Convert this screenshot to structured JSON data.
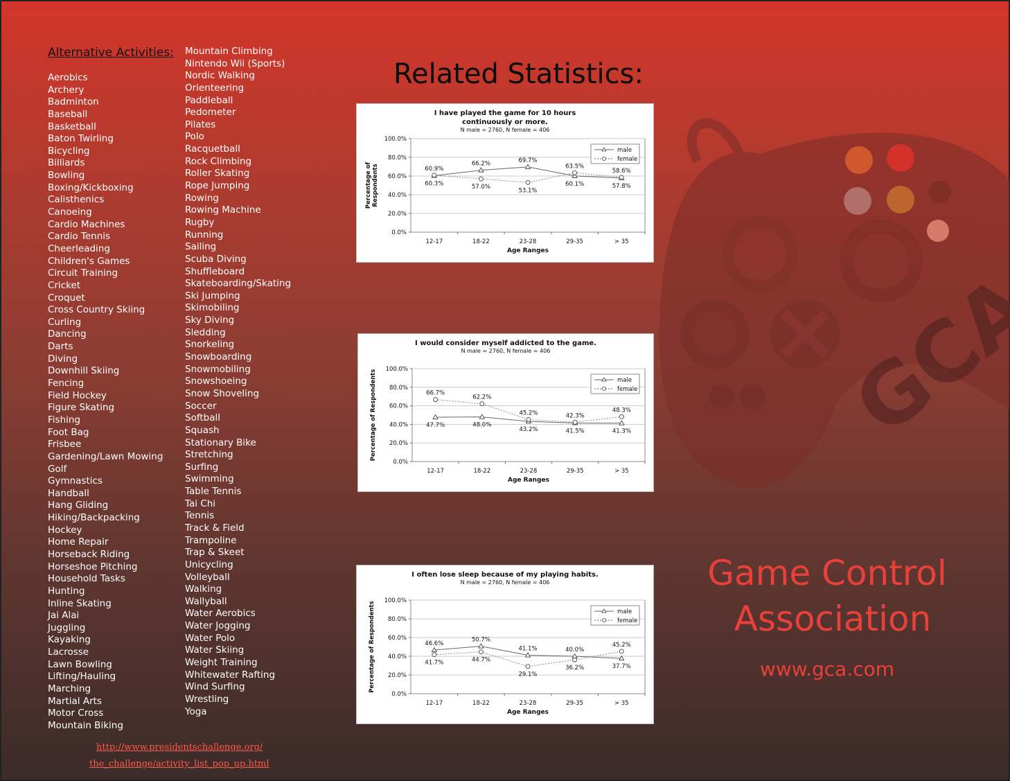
{
  "activities": {
    "title": "Alternative Activities:",
    "column1": [
      "Aerobics",
      "Archery",
      "Badminton",
      "Baseball",
      "Basketball",
      "Baton Twirling",
      "Bicycling",
      "Billiards",
      "Bowling",
      "Boxing/Kickboxing",
      "Calisthenics",
      "Canoeing",
      "Cardio Machines",
      "Cardio Tennis",
      "Cheerleading",
      "Children's Games",
      "Circuit Training",
      "Cricket",
      "Croquet",
      "Cross Country Skiing",
      "Curling",
      "Dancing",
      "Darts",
      "Diving",
      "Downhill Skiing",
      "Fencing",
      "Field Hockey",
      "Figure Skating",
      "Fishing",
      "Foot Bag",
      "Frisbee",
      "Gardening/Lawn Mowing",
      "Golf",
      "Gymnastics",
      "Handball",
      "Hang Gliding",
      "Hiking/Backpacking",
      "Hockey",
      "Home Repair",
      "Horseback Riding",
      "Horseshoe Pitching",
      "Household Tasks",
      "Hunting",
      "Inline Skating",
      "Jai Alai",
      "Juggling",
      "Kayaking",
      "Lacrosse",
      "Lawn Bowling",
      "Lifting/Hauling",
      "Marching",
      "Martial Arts",
      "Motor Cross",
      "Mountain Biking"
    ],
    "column2": [
      "Mountain Climbing",
      "Nintendo Wii (Sports)",
      "Nordic Walking",
      "Orienteering",
      "Paddleball",
      "Pedometer",
      "Pilates",
      "Polo",
      "Racquetball",
      "Rock Climbing",
      "Roller Skating",
      "Rope Jumping",
      "Rowing",
      "Rowing Machine",
      "Rugby",
      "Running",
      "Sailing",
      "Scuba Diving",
      "Shuffleboard",
      "Skateboarding/Skating",
      "Ski Jumping",
      "Skimobiling",
      "Sky Diving",
      "Sledding",
      "Snorkeling",
      "Snowboarding",
      "Snowmobiling",
      "Snowshoeing",
      "Snow Shoveling",
      "Soccer",
      "Softball",
      "Squash",
      "Stationary Bike",
      "Stretching",
      "Surfing",
      "Swimming",
      "Table Tennis",
      "Tai Chi",
      "Tennis",
      "Track & Field",
      "Trampoline",
      "Trap & Skeet",
      "Unicycling",
      "Volleyball",
      "Walking",
      "Wallyball",
      "Water Aerobics",
      "Water Jogging",
      "Water Polo",
      "Water Skiing",
      "Weight Training",
      "Whitewater Rafting",
      "Wind Surfing",
      "Wrestling",
      "Yoga"
    ]
  },
  "source": {
    "line1": "http://www.presidentschallenge.org/",
    "line2": "the_challenge/activity_list_pop_up.html"
  },
  "stats_heading": "Related Statistics:",
  "org": {
    "name_line1": "Game Control",
    "name_line2": "Association",
    "url": "www.gca.com",
    "logo_text": "GCA"
  },
  "colors": {
    "accent": "#e8403a",
    "link": "#ff5a4c"
  },
  "chart_data": [
    {
      "type": "line",
      "title": "I have played the game for 10 hours continuously or more.",
      "title_lines": [
        "I have played the game for 10 hours",
        "continuously or more."
      ],
      "subtitle": "N male = 2760, N female = 406",
      "xlabel": "Age Ranges",
      "ylabel": "Percentage of Respondents",
      "ylabel_lines": [
        "Percentage of",
        "Respondents"
      ],
      "categories": [
        "12-17",
        "18-22",
        "23-28",
        "29-35",
        "> 35"
      ],
      "yticks": [
        "0.0%",
        "20.0%",
        "40.0%",
        "60.0%",
        "80.0%",
        "100.0%"
      ],
      "ylim": [
        0,
        100
      ],
      "grid": true,
      "legend": "top-right",
      "series": [
        {
          "name": "male",
          "values": [
            60.3,
            66.2,
            69.7,
            60.1,
            57.8
          ],
          "labels": [
            "60.3%",
            "66.2%",
            "69.7%",
            "60.1%",
            "57.8%"
          ],
          "marker": "triangle",
          "dash": "solid",
          "label_pos": [
            "below",
            "above",
            "above",
            "below",
            "below"
          ]
        },
        {
          "name": "female",
          "values": [
            60.9,
            57.0,
            53.1,
            63.5,
            58.6
          ],
          "labels": [
            "60.9%",
            "57.0%",
            "53.1%",
            "63.5%",
            "58.6%"
          ],
          "marker": "circle",
          "dash": "dotted",
          "label_pos": [
            "above",
            "below",
            "below",
            "above",
            "above"
          ]
        }
      ]
    },
    {
      "type": "line",
      "title": "I would consider myself addicted to the game.",
      "title_lines": [
        "I would consider myself addicted to the game."
      ],
      "subtitle": "N male = 2760, N female = 406",
      "xlabel": "Age Ranges",
      "ylabel": "Percentage of Respondents",
      "ylabel_lines": [
        "Percentage of Respondents"
      ],
      "categories": [
        "12-17",
        "18-22",
        "23-28",
        "29-35",
        "> 35"
      ],
      "yticks": [
        "0.0%",
        "20.0%",
        "40.0%",
        "60.0%",
        "80.0%",
        "100.0%"
      ],
      "ylim": [
        0,
        100
      ],
      "grid": true,
      "legend": "top-right",
      "series": [
        {
          "name": "male",
          "values": [
            47.7,
            48.0,
            43.2,
            41.5,
            41.3
          ],
          "labels": [
            "47.7%",
            "48.0%",
            "43.2%",
            "41.5%",
            "41.3%"
          ],
          "marker": "triangle",
          "dash": "solid",
          "label_pos": [
            "below",
            "below",
            "below",
            "below",
            "below"
          ]
        },
        {
          "name": "female",
          "values": [
            66.7,
            62.2,
            45.2,
            42.3,
            48.3
          ],
          "labels": [
            "66.7%",
            "62.2%",
            "45.2%",
            "42.3%",
            "48.3%"
          ],
          "marker": "circle",
          "dash": "dotted",
          "label_pos": [
            "above",
            "above",
            "above",
            "above",
            "above"
          ]
        }
      ]
    },
    {
      "type": "line",
      "title": "I often lose sleep because of my playing habits.",
      "title_lines": [
        "I often lose sleep because of my playing habits."
      ],
      "subtitle": "N male = 2760, N female = 406",
      "xlabel": "Age Ranges",
      "ylabel": "Percentage of Respondents",
      "ylabel_lines": [
        "Percentage of Respondents"
      ],
      "categories": [
        "12-17",
        "18-22",
        "23-28",
        "29-35",
        "> 35"
      ],
      "yticks": [
        "0.0%",
        "20.0%",
        "40.0%",
        "60.0%",
        "80.0%",
        "100.0%"
      ],
      "ylim": [
        0,
        100
      ],
      "grid": true,
      "legend": "top-right",
      "series": [
        {
          "name": "male",
          "values": [
            46.6,
            50.7,
            41.1,
            40.0,
            37.7
          ],
          "labels": [
            "46.6%",
            "50.7%",
            "41.1%",
            "40.0%",
            "37.7%"
          ],
          "marker": "triangle",
          "dash": "solid",
          "label_pos": [
            "above",
            "above",
            "above",
            "above",
            "below"
          ]
        },
        {
          "name": "female",
          "values": [
            41.7,
            44.7,
            29.1,
            36.2,
            45.2
          ],
          "labels": [
            "41.7%",
            "44.7%",
            "29.1%",
            "36.2%",
            "45.2%"
          ],
          "marker": "circle",
          "dash": "dotted",
          "label_pos": [
            "below",
            "below",
            "below",
            "below",
            "above"
          ]
        }
      ]
    }
  ]
}
